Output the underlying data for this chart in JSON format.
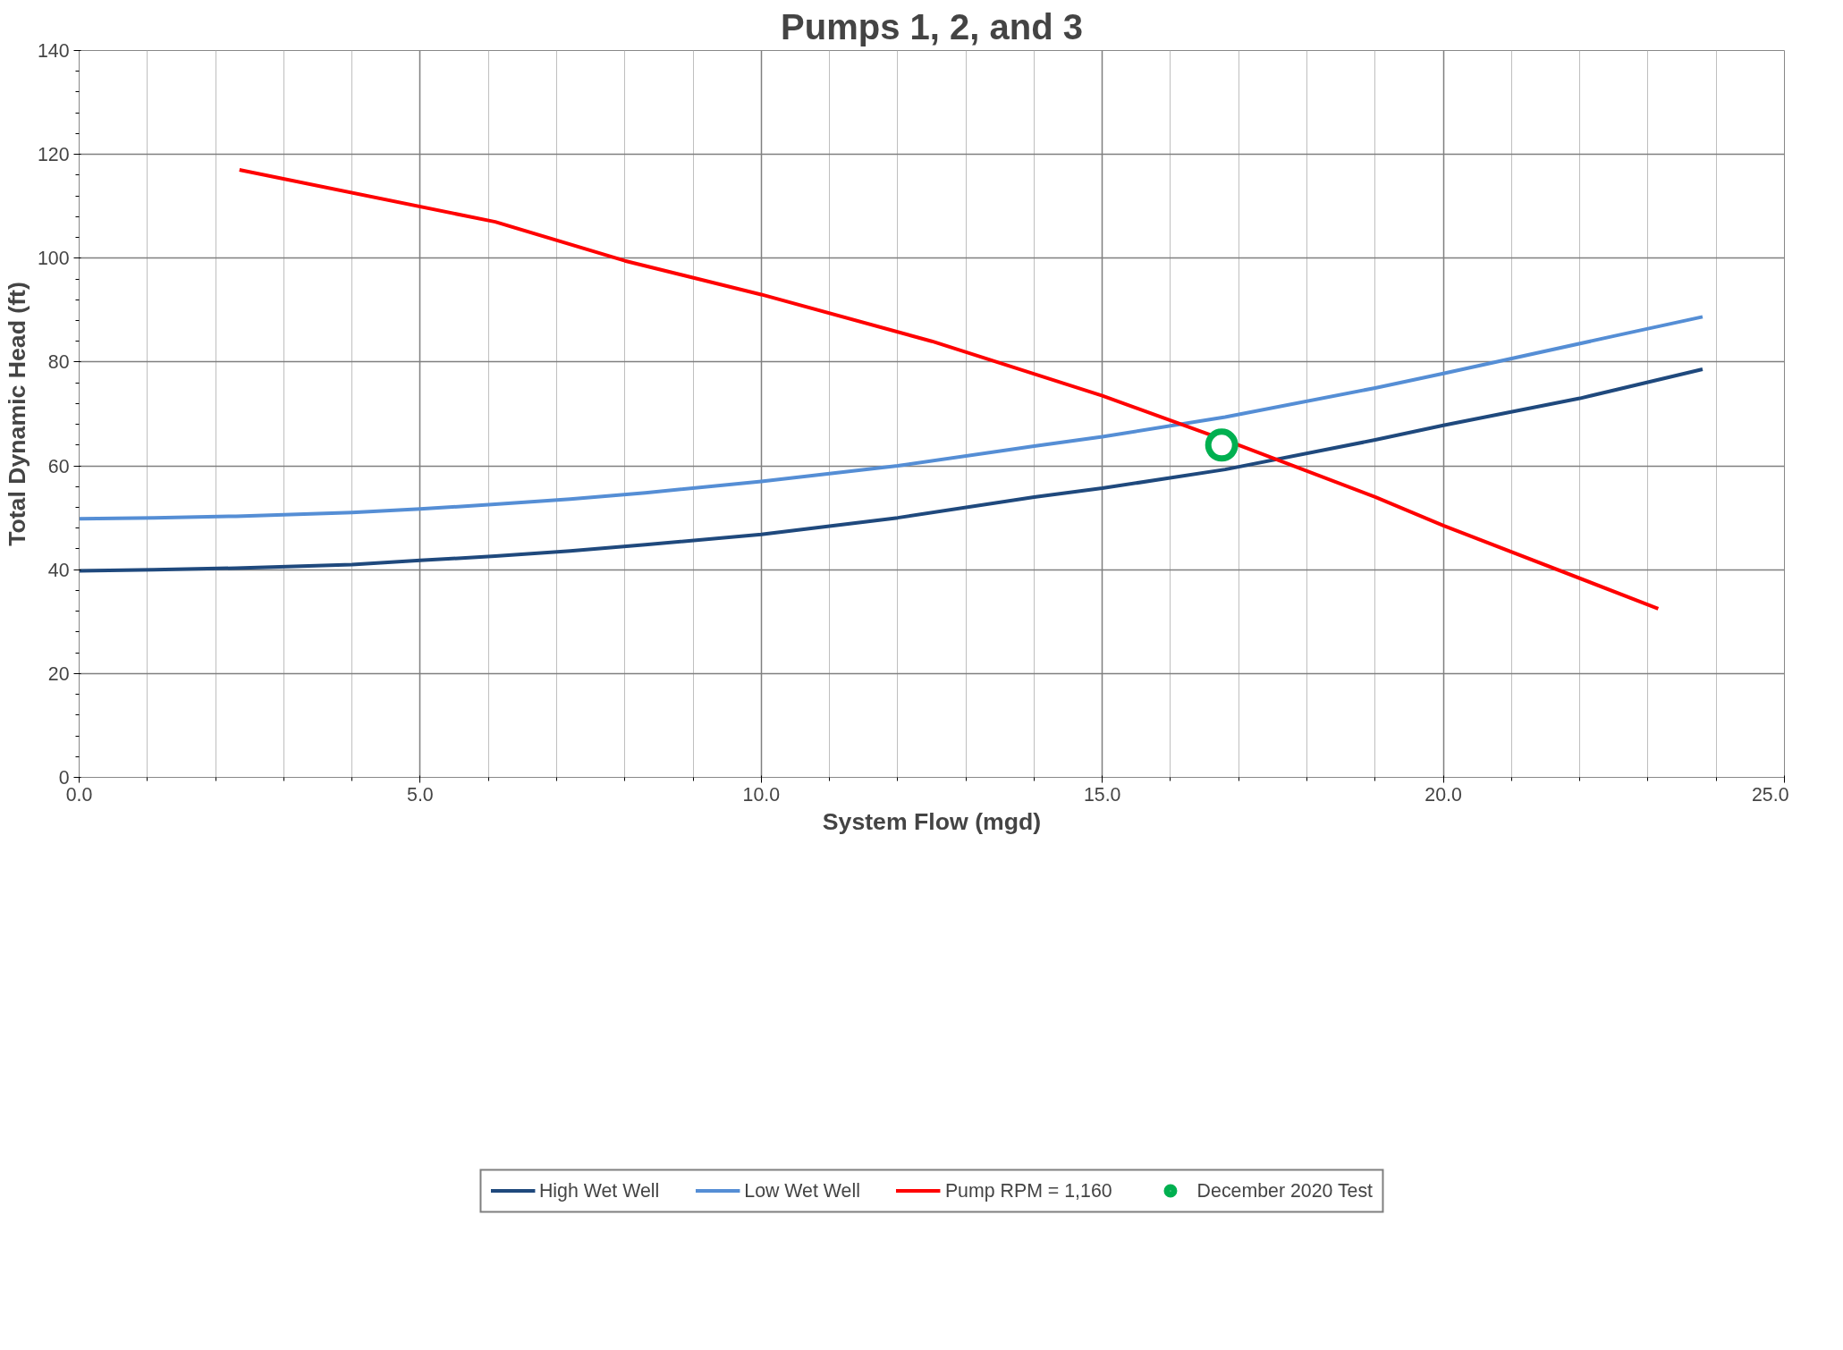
{
  "chart_data": {
    "type": "line",
    "title": "Pumps 1, 2, and 3",
    "xlabel": "System Flow (mgd)",
    "ylabel": "Total Dynamic Head (ft)",
    "xlim": [
      0,
      25
    ],
    "ylim": [
      0,
      140
    ],
    "xticks": [
      {
        "value": 0,
        "label": "0.0"
      },
      {
        "value": 5,
        "label": "5.0"
      },
      {
        "value": 10,
        "label": "10.0"
      },
      {
        "value": 15,
        "label": "15.0"
      },
      {
        "value": 20,
        "label": "20.0"
      },
      {
        "value": 25,
        "label": "25.0"
      }
    ],
    "yticks": [
      0,
      20,
      40,
      60,
      80,
      100,
      120,
      140
    ],
    "grid": true,
    "legend": "bottom",
    "marker": "none",
    "line_style": "solid",
    "series": [
      {
        "name": "High Wet Well",
        "color": "#1f497d",
        "x": [
          0,
          1.1,
          2.3,
          4,
          5,
          6.1,
          7.2,
          8.3,
          10,
          12,
          14,
          15,
          16.8,
          19,
          20,
          22,
          23.8
        ],
        "values": [
          39.8,
          40,
          40.3,
          41,
          41.8,
          42.6,
          43.6,
          44.8,
          46.8,
          50,
          54,
          55.7,
          59.3,
          65,
          67.8,
          73,
          78.6
        ]
      },
      {
        "name": "Low Wet Well",
        "color": "#558ed5",
        "x": [
          0,
          1.1,
          2.3,
          4,
          5,
          6.1,
          7.2,
          8.3,
          10,
          12,
          14,
          15,
          16.8,
          19,
          20,
          22.5,
          23.8
        ],
        "values": [
          49.8,
          50,
          50.3,
          51,
          51.7,
          52.6,
          53.6,
          54.8,
          57,
          60,
          63.8,
          65.6,
          69.4,
          75,
          77.8,
          85,
          88.7
        ]
      },
      {
        "name": "Pump RPM = 1,160",
        "color": "#ff0000",
        "x": [
          2.35,
          6.1,
          8,
          10,
          12.5,
          15,
          17,
          19,
          20,
          23.15
        ],
        "values": [
          117,
          107,
          99.5,
          93,
          84,
          73.5,
          64,
          54,
          48.5,
          32.5
        ]
      },
      {
        "name": "December 2020 Test",
        "type": "scatter",
        "marker": "circle",
        "color": "#00b050",
        "x": [
          16.75
        ],
        "values": [
          64
        ]
      }
    ]
  }
}
